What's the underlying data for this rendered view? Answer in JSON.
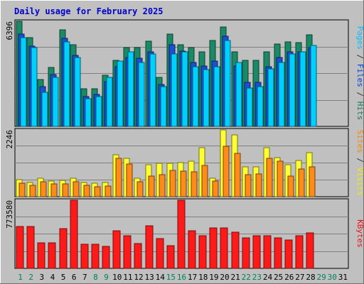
{
  "chart_data": {
    "type": "bar",
    "title": "Daily usage for February 2025",
    "categories": [
      "1",
      "2",
      "3",
      "4",
      "5",
      "6",
      "7",
      "8",
      "9",
      "10",
      "11",
      "12",
      "13",
      "14",
      "15",
      "16",
      "17",
      "18",
      "19",
      "20",
      "21",
      "22",
      "23",
      "24",
      "25",
      "26",
      "27",
      "28",
      "29",
      "30",
      "31"
    ],
    "weekend_days": [
      "1",
      "2",
      "8",
      "9",
      "15",
      "16",
      "22",
      "23",
      "29",
      "30"
    ],
    "panels": [
      {
        "name": "top",
        "max_label": "6396",
        "ymax": 6396,
        "legend": [
          {
            "text": "Pages",
            "color": "#00bfff"
          },
          {
            "text": " / ",
            "color": "#333333"
          },
          {
            "text": "Files",
            "color": "#0044dd"
          },
          {
            "text": " / ",
            "color": "#333333"
          },
          {
            "text": "Hits",
            "color": "#1a7a5c"
          }
        ],
        "series": [
          {
            "name": "Hits",
            "color": "#1a8a66",
            "values": [
              6396,
              5417,
              2844,
              3576,
              5894,
              4983,
              2307,
              2307,
              3091,
              4014,
              4786,
              4786,
              5168,
              2990,
              5618,
              4983,
              4786,
              4523,
              5250,
              6035,
              4523,
              4014,
              4014,
              4523,
              5014,
              5144,
              5109,
              5584,
              0,
              0,
              0
            ]
          },
          {
            "name": "Files",
            "color": "#1a4fd6",
            "values": [
              5613,
              4876,
              2430,
              3140,
              5375,
              4326,
              1835,
              1940,
              2723,
              3629,
              4195,
              4155,
              4523,
              2540,
              4982,
              4560,
              3904,
              3688,
              3959,
              5486,
              3688,
              2670,
              2670,
              3629,
              4195,
              4523,
              4523,
              4786,
              0,
              0,
              0
            ]
          },
          {
            "name": "Pages",
            "color": "#00d0ff",
            "values": [
              5417,
              4786,
              2090,
              2990,
              5144,
              4195,
              1682,
              1835,
              2990,
              3959,
              4523,
              3904,
              4413,
              2430,
              4413,
              4523,
              3629,
              3462,
              3629,
              5250,
              3904,
              2330,
              2430,
              3515,
              3904,
              4413,
              4523,
              4919,
              0,
              0,
              0
            ]
          }
        ]
      },
      {
        "name": "middle",
        "max_label": "2246",
        "ymax": 2246,
        "legend": [
          {
            "text": "Sites",
            "color": "#ff8800"
          },
          {
            "text": " / ",
            "color": "#333333"
          },
          {
            "text": "Visits",
            "color": "#eeee00"
          }
        ],
        "series": [
          {
            "name": "Visits",
            "color": "#ffff33",
            "values": [
              580,
              470,
              610,
              530,
              550,
              610,
              480,
              450,
              470,
              1400,
              1300,
              630,
              1080,
              1130,
              1130,
              1150,
              1190,
              1660,
              630,
              2246,
              2080,
              1010,
              1010,
              1660,
              1320,
              1080,
              1210,
              1470,
              0,
              0,
              0
            ]
          },
          {
            "name": "Sites",
            "color": "#ff8c1a",
            "values": [
              450,
              380,
              490,
              440,
              430,
              500,
              380,
              330,
              370,
              1290,
              1090,
              500,
              700,
              730,
              880,
              870,
              830,
              1060,
              520,
              1700,
              1460,
              740,
              770,
              1290,
              1200,
              700,
              920,
              1010,
              0,
              0,
              0
            ]
          }
        ]
      },
      {
        "name": "bottom",
        "max_label": "773580",
        "ymax": 773580,
        "legend": [
          {
            "text": "KBytes",
            "color": "#ee1111"
          }
        ],
        "series": [
          {
            "name": "KBytes",
            "color": "#ff1a1a",
            "values": [
              478000,
              478000,
              290000,
              290000,
              455000,
              773580,
              270000,
              270000,
              250000,
              430000,
              370000,
              280000,
              480000,
              340000,
              255000,
              773580,
              430000,
              370000,
              460000,
              460000,
              410000,
              350000,
              370000,
              370000,
              350000,
              320000,
              370000,
              400000,
              0,
              0,
              0
            ]
          }
        ]
      }
    ]
  }
}
